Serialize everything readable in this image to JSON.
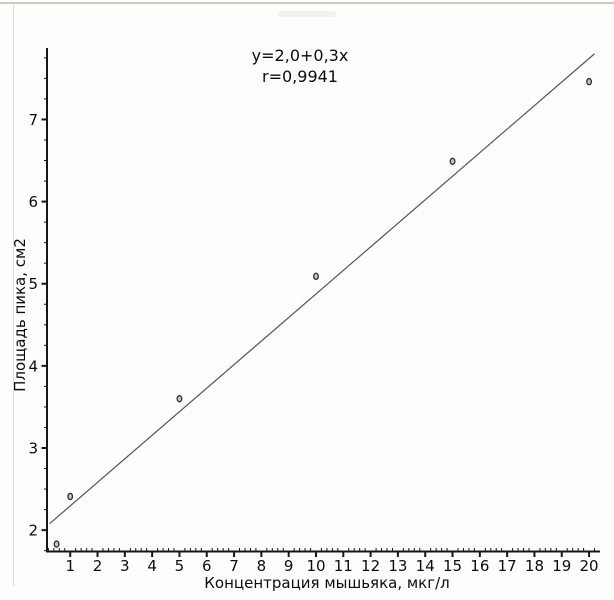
{
  "page": {
    "background": "#fdfdfb",
    "frame_top_color": "#c9c9c2",
    "frame_left_color": "#dfdcd4"
  },
  "chart_data": {
    "type": "scatter",
    "title": "",
    "annotations": [
      "y=2,0+0,3x",
      "r=0,9941"
    ],
    "xlabel": "Концентрация мышьяка, мкг/л",
    "ylabel": "Площадь пика, см2",
    "x_ticks": [
      1,
      2,
      3,
      4,
      5,
      6,
      7,
      8,
      9,
      10,
      11,
      12,
      13,
      14,
      15,
      16,
      17,
      18,
      19,
      20
    ],
    "y_ticks": [
      2,
      3,
      4,
      5,
      6,
      7
    ],
    "xlim": [
      0.15,
      20.4
    ],
    "ylim": [
      1.74,
      7.87
    ],
    "x_minor_step": 0.2,
    "y_minor_step": 0.25,
    "grid": false,
    "legend": "none",
    "points": [
      [
        0.5,
        1.83
      ],
      [
        1,
        2.41
      ],
      [
        5,
        3.6
      ],
      [
        10,
        5.09
      ],
      [
        15,
        6.49
      ],
      [
        20,
        7.46
      ]
    ],
    "fit_line": {
      "equation_displayed": "y=2,0+0,3x",
      "r_displayed": "0,9941",
      "intercept": 2.0,
      "slope": 0.3,
      "draw_from": [
        0.25,
        2.08
      ],
      "draw_to": [
        20.2,
        7.8
      ]
    },
    "colors": {
      "axis": "#161616",
      "tick_text": "#0c0c0c",
      "fit_line": "#5d4f5d",
      "marker_stroke": "#2e2a2e",
      "marker_fill": "#c9c5c9",
      "annotation_text": "#0c0c0c"
    }
  }
}
